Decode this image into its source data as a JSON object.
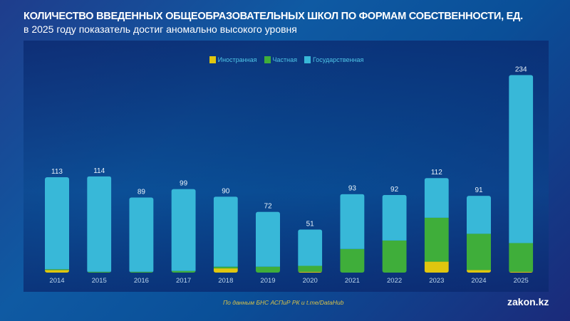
{
  "chart_data": {
    "type": "bar",
    "stacked": true,
    "title": "КОЛИЧЕСТВО ВВЕДЕННЫХ ОБЩЕОБРАЗОВАТЕЛЬНЫХ ШКОЛ ПО ФОРМАМ СОБСТВЕННОСТИ, ЕД.",
    "subtitle": "в 2025 году показатель достиг аномально высокого уровня",
    "xlabel": "",
    "ylabel": "",
    "legend_position": "top-center",
    "grid": false,
    "categories": [
      "2014",
      "2015",
      "2016",
      "2017",
      "2018",
      "2019",
      "2020",
      "2021",
      "2022",
      "2023",
      "2024",
      "2025"
    ],
    "totals": [
      113,
      114,
      89,
      99,
      90,
      72,
      51,
      93,
      92,
      112,
      91,
      234
    ],
    "series": [
      {
        "name": "Иностранная",
        "color": "#e0c60f",
        "values": [
          3,
          0,
          0,
          0,
          5,
          0,
          1,
          0,
          0,
          13,
          3,
          1
        ]
      },
      {
        "name": "Частная",
        "color": "#3fae3a",
        "values": [
          1,
          1,
          1,
          2,
          2,
          7,
          7,
          28,
          38,
          52,
          43,
          34
        ]
      },
      {
        "name": "Государственная",
        "color": "#38b8d8",
        "values": [
          109,
          113,
          88,
          97,
          83,
          65,
          43,
          65,
          54,
          47,
          45,
          199
        ]
      }
    ],
    "ylim": [
      0,
      240
    ]
  },
  "source": "По данным БНС АСПиР РК и t.me/DataHub",
  "logo": "zakon.kz"
}
